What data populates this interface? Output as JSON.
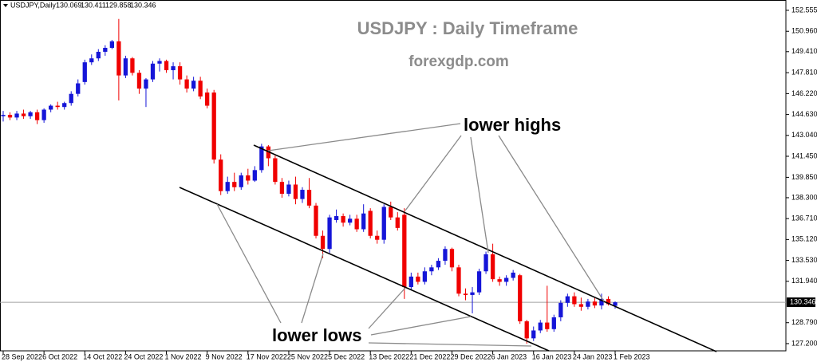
{
  "chart_data": {
    "type": "candlestick",
    "title": "USDJPY : Daily Timeframe",
    "subtitle": "forexgdp.com",
    "symbol": "USDJPY,Daily",
    "annotations": [
      "lower highs",
      "lower lows"
    ],
    "up_color": "#1515d8",
    "down_color": "#f00000",
    "ylim": [
      126.65,
      153.34
    ],
    "yticks": [
      152.555,
      {
        "value": 150.96,
        "label": "150.960"
      },
      {
        "value": 149.41,
        "label": "149.410"
      },
      {
        "value": 147.81,
        "label": "147.810"
      },
      {
        "value": 146.22,
        "label": "146.220"
      },
      {
        "value": 144.63,
        "label": "144.630"
      },
      {
        "value": 143.04,
        "label": "143.040"
      },
      {
        "value": 141.45,
        "label": "141.450"
      },
      {
        "value": 139.85,
        "label": "139.850"
      },
      {
        "value": 138.3,
        "label": "138.300"
      },
      {
        "value": 136.71,
        "label": "136.710"
      },
      {
        "value": 135.12,
        "label": "135.120"
      },
      {
        "value": 133.53,
        "label": "133.530"
      },
      {
        "value": 131.94,
        "label": "131.940"
      },
      {
        "value": 128.79,
        "label": "128.790"
      },
      {
        "value": 127.2,
        "label": "127.200"
      }
    ],
    "categories": [
      "28 Sep 2022",
      null,
      null,
      null,
      null,
      null,
      "6 Oct 2022",
      null,
      null,
      null,
      null,
      null,
      "14 Oct 2022",
      null,
      null,
      null,
      null,
      null,
      "24 Oct 2022",
      null,
      null,
      null,
      null,
      null,
      "1 Nov 2022",
      null,
      null,
      null,
      null,
      null,
      "9 Nov 2022",
      null,
      null,
      null,
      null,
      null,
      "17 Nov 2022",
      null,
      null,
      null,
      null,
      null,
      "25 Nov 2022",
      null,
      null,
      null,
      null,
      null,
      "5 Dec 2022",
      null,
      null,
      null,
      null,
      null,
      "13 Dec 2022",
      null,
      null,
      null,
      null,
      null,
      "21 Dec 2022",
      null,
      null,
      null,
      null,
      null,
      "29 Dec 2022",
      null,
      null,
      null,
      null,
      null,
      "6 Jan 2023",
      null,
      null,
      null,
      null,
      null,
      "16 Jan 2023",
      null,
      null,
      null,
      null,
      null,
      "24 Jan 2023",
      null,
      null,
      null,
      null,
      null,
      "1 Feb 2023"
    ],
    "open": [
      144.5,
      144.6,
      144.4,
      144.7,
      144.5,
      144.8,
      144.2,
      145.0,
      145.3,
      145.2,
      145.5,
      146.2,
      147.1,
      148.6,
      148.9,
      149.4,
      149.7,
      150.2,
      147.6,
      148.9,
      147.8,
      146.6,
      147.3,
      148.5,
      148.7,
      148.0,
      148.3,
      147.3,
      146.6,
      147.2,
      146.3,
      146.3,
      141.2,
      138.8,
      139.5,
      139.1,
      140.0,
      139.6,
      140.4,
      142.2,
      141.3,
      139.5,
      138.6,
      139.3,
      138.2,
      138.9,
      137.7,
      135.4,
      134.4,
      136.6,
      136.9,
      136.4,
      136.7,
      135.9,
      137.3,
      135.4,
      135.1,
      137.6,
      136.8,
      137.0,
      131.5,
      132.3,
      131.9,
      132.7,
      133.0,
      133.5,
      134.4,
      133.0,
      131.0,
      130.9,
      131.1,
      132.7,
      134.0,
      132.1,
      131.9,
      132.2,
      132.4,
      128.9,
      127.6,
      128.2,
      128.8,
      128.3,
      129.2,
      130.3,
      130.8,
      130.2,
      130.0,
      130.4,
      130.1,
      130.6,
      130.069
    ],
    "high": [
      144.9,
      144.8,
      144.9,
      145.0,
      144.9,
      145.0,
      145.1,
      145.4,
      145.6,
      145.6,
      146.4,
      147.3,
      148.8,
      149.2,
      149.6,
      149.9,
      150.3,
      151.9,
      149.1,
      149.0,
      148.0,
      147.4,
      148.7,
      148.9,
      148.8,
      148.6,
      148.6,
      147.6,
      147.5,
      147.5,
      146.6,
      146.5,
      141.6,
      139.9,
      140.2,
      140.2,
      140.5,
      140.7,
      142.4,
      142.3,
      141.5,
      139.8,
      139.6,
      139.9,
      139.1,
      139.8,
      137.9,
      135.8,
      137.0,
      137.4,
      137.1,
      137.0,
      137.0,
      137.8,
      137.5,
      135.8,
      137.8,
      138.0,
      137.2,
      137.5,
      132.6,
      132.6,
      133.0,
      133.2,
      133.7,
      134.6,
      134.5,
      133.2,
      131.4,
      131.5,
      132.9,
      134.2,
      134.8,
      132.3,
      132.4,
      132.8,
      132.5,
      129.0,
      128.5,
      129.0,
      131.6,
      129.4,
      130.5,
      131.0,
      131.1,
      130.7,
      130.6,
      130.7,
      131.0,
      130.8,
      130.411
    ],
    "low": [
      144.1,
      144.2,
      144.2,
      144.3,
      144.3,
      143.9,
      144.0,
      144.8,
      145.0,
      145.0,
      145.3,
      146.0,
      146.9,
      148.4,
      148.7,
      149.1,
      149.6,
      145.7,
      147.4,
      147.6,
      146.2,
      145.2,
      147.1,
      147.9,
      147.8,
      147.3,
      146.9,
      146.3,
      146.4,
      145.8,
      145.1,
      140.9,
      138.5,
      138.6,
      138.8,
      138.9,
      139.3,
      139.5,
      140.2,
      140.7,
      139.3,
      138.3,
      138.4,
      137.8,
      137.9,
      137.5,
      135.2,
      133.7,
      134.1,
      136.4,
      136.1,
      136.2,
      135.7,
      135.7,
      135.2,
      134.8,
      134.8,
      136.6,
      135.8,
      130.6,
      131.3,
      131.7,
      131.7,
      132.4,
      132.8,
      133.2,
      132.7,
      130.8,
      130.5,
      129.5,
      130.9,
      132.5,
      131.9,
      131.6,
      131.6,
      132.0,
      128.7,
      127.2,
      127.4,
      128.0,
      128.1,
      128.1,
      128.9,
      130.0,
      130.0,
      129.7,
      129.8,
      129.9,
      129.8,
      130.1,
      129.858
    ],
    "close": [
      144.6,
      144.4,
      144.7,
      144.5,
      144.8,
      144.2,
      145.0,
      145.3,
      145.2,
      145.5,
      146.2,
      147.0,
      148.6,
      148.9,
      149.4,
      149.7,
      150.2,
      147.6,
      148.9,
      147.8,
      146.6,
      147.3,
      148.5,
      148.7,
      148.0,
      148.3,
      147.3,
      146.6,
      147.2,
      146.0,
      145.3,
      141.2,
      138.8,
      139.5,
      139.1,
      140.0,
      139.6,
      140.4,
      142.2,
      141.3,
      139.5,
      138.6,
      139.3,
      138.2,
      138.9,
      137.7,
      135.4,
      134.4,
      136.8,
      136.9,
      136.4,
      136.7,
      135.9,
      137.1,
      135.4,
      135.1,
      137.6,
      136.8,
      136.0,
      131.5,
      132.3,
      131.9,
      132.7,
      133.0,
      133.5,
      134.4,
      133.0,
      131.0,
      130.9,
      131.1,
      132.7,
      134.0,
      132.1,
      131.9,
      132.2,
      132.6,
      128.9,
      127.6,
      128.2,
      128.8,
      128.3,
      129.2,
      130.3,
      130.8,
      130.2,
      130.0,
      130.4,
      130.1,
      130.6,
      130.2,
      130.346
    ]
  }
}
